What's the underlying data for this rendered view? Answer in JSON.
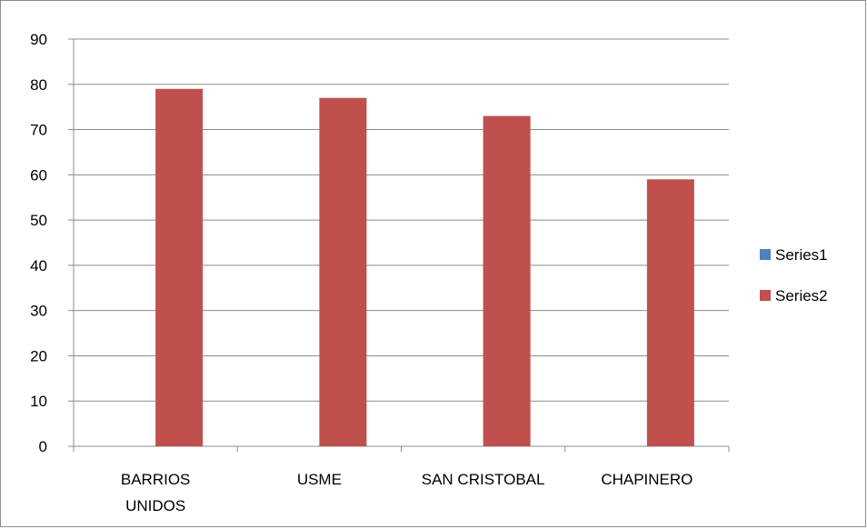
{
  "chart_data": {
    "type": "bar",
    "categories": [
      [
        "BARRIOS",
        "UNIDOS"
      ],
      [
        "USME"
      ],
      [
        "SAN CRISTOBAL"
      ],
      [
        "CHAPINERO"
      ]
    ],
    "series": [
      {
        "name": "Series1",
        "values": [
          0,
          0,
          0,
          0
        ],
        "color": "#4f81bd"
      },
      {
        "name": "Series2",
        "values": [
          79,
          77,
          73,
          59
        ],
        "color": "#c0504d"
      }
    ],
    "ylim": [
      0,
      90
    ],
    "yticks": [
      0,
      10,
      20,
      30,
      40,
      50,
      60,
      70,
      80,
      90
    ],
    "grid": true,
    "legend_position": "right"
  }
}
